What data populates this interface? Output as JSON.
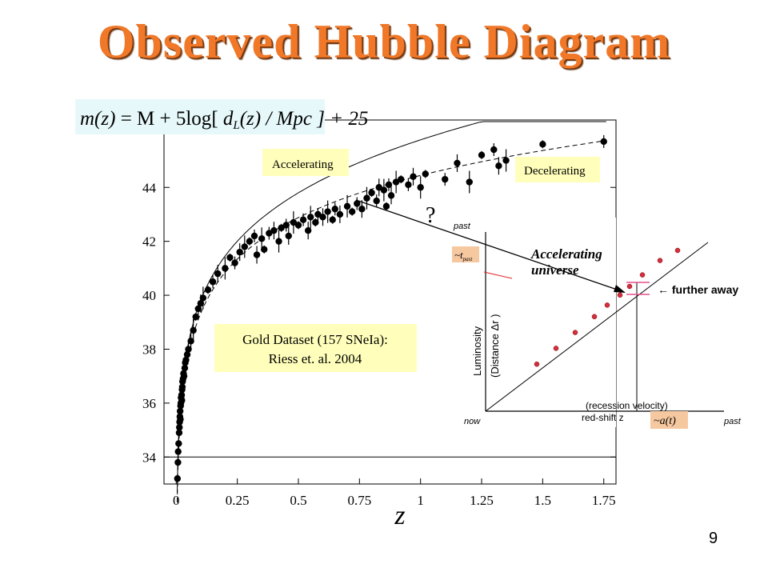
{
  "page": {
    "title": "Observed Hubble Diagram",
    "page_number": "9"
  },
  "formula": {
    "m": "m(z)",
    "eq": " = M + 5log",
    "d": "d",
    "sub": "L",
    "arg": "(z)",
    "per": "/ Mpc",
    "plus": "+ 25"
  },
  "annotations": {
    "accelerating": "Accelerating",
    "decelerating": "Decelerating",
    "question": "?",
    "dataset_line1": "Gold Dataset (157 SNeIa):",
    "dataset_line2": "Riess et. al. 2004"
  },
  "inset": {
    "past_top": "past",
    "t_past": "~t",
    "t_sub": "past",
    "accelerating_universe_1": "Accelerating",
    "accelerating_universe_2": "universe",
    "further_away": "further away",
    "ylabel_1": "Luminosity",
    "ylabel_2": "(Distance Δr )",
    "recession": "(recession velocity)",
    "redshift": "red-shift  z",
    "a_of_t": "~a(t)",
    "now": "now",
    "past_right": "past",
    "points": [
      [
        0.12,
        0.16
      ],
      [
        0.24,
        0.27
      ],
      [
        0.36,
        0.38
      ],
      [
        0.48,
        0.49
      ],
      [
        0.56,
        0.57
      ],
      [
        0.64,
        0.64
      ],
      [
        0.7,
        0.7
      ],
      [
        0.78,
        0.78
      ],
      [
        0.89,
        0.88
      ],
      [
        1.0,
        0.95
      ]
    ]
  },
  "chart_data": {
    "type": "scatter",
    "xlabel": "z",
    "ylabel": "",
    "xlim": [
      -0.05,
      1.8
    ],
    "ylim": [
      33,
      46.5
    ],
    "xticks": [
      "0",
      "0.25",
      "0.5",
      "0.75",
      "1",
      "1.25",
      "1.5",
      "1.75"
    ],
    "xtick_values": [
      0,
      0.25,
      0.5,
      0.75,
      1,
      1.25,
      1.5,
      1.75
    ],
    "yticks": [
      "34",
      "36",
      "38",
      "40",
      "42",
      "44"
    ],
    "ytick_values": [
      34,
      36,
      38,
      40,
      42,
      44
    ],
    "reference_line_y": 34,
    "series": [
      {
        "kind": "points",
        "values": [
          [
            0.005,
            33.2
          ],
          [
            0.007,
            33.8
          ],
          [
            0.008,
            34.2
          ],
          [
            0.01,
            34.5
          ],
          [
            0.012,
            34.9
          ],
          [
            0.013,
            35.1
          ],
          [
            0.014,
            35.3
          ],
          [
            0.015,
            35.5
          ],
          [
            0.016,
            35.7
          ],
          [
            0.017,
            35.4
          ],
          [
            0.018,
            35.9
          ],
          [
            0.019,
            36.0
          ],
          [
            0.02,
            36.2
          ],
          [
            0.022,
            36.3
          ],
          [
            0.023,
            36.1
          ],
          [
            0.024,
            36.5
          ],
          [
            0.025,
            36.6
          ],
          [
            0.026,
            36.8
          ],
          [
            0.028,
            36.9
          ],
          [
            0.03,
            37.1
          ],
          [
            0.032,
            37.0
          ],
          [
            0.035,
            37.3
          ],
          [
            0.037,
            37.5
          ],
          [
            0.04,
            37.6
          ],
          [
            0.045,
            37.8
          ],
          [
            0.05,
            38.0
          ],
          [
            0.06,
            38.3
          ],
          [
            0.07,
            38.7
          ],
          [
            0.08,
            39.2
          ],
          [
            0.09,
            39.5
          ],
          [
            0.1,
            39.7
          ],
          [
            0.11,
            39.9
          ],
          [
            0.13,
            40.2
          ],
          [
            0.15,
            40.5
          ],
          [
            0.17,
            40.8
          ],
          [
            0.2,
            41.0
          ],
          [
            0.22,
            41.4
          ],
          [
            0.24,
            41.2
          ],
          [
            0.26,
            41.6
          ],
          [
            0.28,
            41.8
          ],
          [
            0.3,
            42.0
          ],
          [
            0.32,
            42.2
          ],
          [
            0.33,
            41.5
          ],
          [
            0.35,
            42.1
          ],
          [
            0.36,
            41.7
          ],
          [
            0.38,
            42.3
          ],
          [
            0.4,
            42.4
          ],
          [
            0.42,
            42.0
          ],
          [
            0.43,
            42.5
          ],
          [
            0.45,
            42.6
          ],
          [
            0.46,
            42.2
          ],
          [
            0.48,
            42.7
          ],
          [
            0.5,
            42.6
          ],
          [
            0.52,
            42.8
          ],
          [
            0.54,
            42.4
          ],
          [
            0.55,
            42.9
          ],
          [
            0.57,
            42.7
          ],
          [
            0.58,
            43.0
          ],
          [
            0.6,
            42.9
          ],
          [
            0.62,
            43.1
          ],
          [
            0.64,
            42.8
          ],
          [
            0.65,
            43.2
          ],
          [
            0.67,
            43.0
          ],
          [
            0.7,
            43.3
          ],
          [
            0.72,
            43.1
          ],
          [
            0.74,
            43.4
          ],
          [
            0.76,
            43.2
          ],
          [
            0.78,
            43.6
          ],
          [
            0.8,
            43.8
          ],
          [
            0.82,
            43.5
          ],
          [
            0.83,
            44.0
          ],
          [
            0.85,
            43.9
          ],
          [
            0.86,
            43.3
          ],
          [
            0.87,
            44.1
          ],
          [
            0.88,
            43.7
          ],
          [
            0.9,
            44.2
          ],
          [
            0.92,
            44.3
          ],
          [
            0.95,
            44.1
          ],
          [
            0.97,
            44.4
          ],
          [
            1.0,
            44.0
          ],
          [
            1.02,
            44.5
          ],
          [
            1.1,
            44.3
          ],
          [
            1.15,
            44.9
          ],
          [
            1.2,
            44.2
          ],
          [
            1.25,
            45.2
          ],
          [
            1.3,
            45.4
          ],
          [
            1.32,
            44.8
          ],
          [
            1.35,
            45.0
          ],
          [
            1.5,
            45.6
          ],
          [
            1.75,
            45.7
          ]
        ]
      },
      {
        "kind": "accelerating-model",
        "style": "solid"
      },
      {
        "kind": "decelerating-model",
        "style": "dashed"
      }
    ]
  }
}
